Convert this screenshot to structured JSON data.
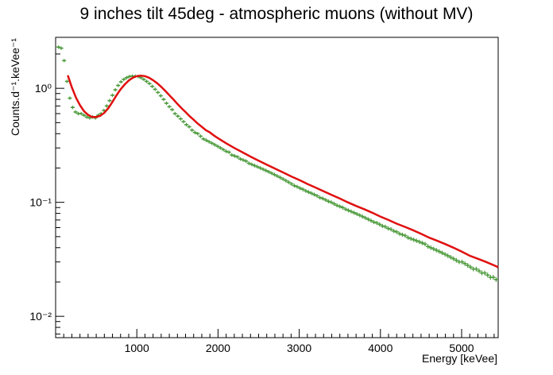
{
  "chart_data": {
    "type": "scatter",
    "title": "9 inches tilt 45deg - atmospheric muons (without MV)",
    "xlabel": "Energy [keVee]",
    "ylabel": "Counts.d⁻¹.keVee⁻¹",
    "xlim": [
      0,
      5450
    ],
    "ylim": [
      0.0065,
      2.8
    ],
    "yscale": "log",
    "grid": false,
    "x_ticks": [
      "1000",
      "2000",
      "3000",
      "4000",
      "5000"
    ],
    "y_ticks": [
      {
        "value": 1,
        "label": "10⁰"
      },
      {
        "value": 0.1,
        "label": "10⁻¹"
      },
      {
        "value": 0.01,
        "label": "10⁻²"
      }
    ],
    "colors": {
      "data": "#4a9a3a",
      "fit": "#e01010"
    },
    "series": [
      {
        "kind": "points",
        "x": [
          35,
          70,
          105,
          140,
          175,
          210,
          245,
          280,
          315,
          350,
          385,
          420,
          455,
          490,
          525,
          560,
          595,
          630,
          665,
          700,
          735,
          770,
          805,
          840,
          875,
          910,
          945,
          980,
          1015,
          1050,
          1085,
          1120,
          1155,
          1190,
          1225,
          1260,
          1295,
          1330,
          1365,
          1400,
          1435,
          1470,
          1505,
          1540,
          1575,
          1610,
          1645,
          1680,
          1715,
          1750,
          1785,
          1820,
          1855,
          1890,
          1925,
          1960,
          1995,
          2030,
          2065,
          2100,
          2135,
          2170,
          2205,
          2240,
          2275,
          2310,
          2345,
          2380,
          2415,
          2450,
          2485,
          2520,
          2555,
          2590,
          2625,
          2660,
          2695,
          2730,
          2765,
          2800,
          2835,
          2870,
          2905,
          2940,
          2975,
          3010,
          3045,
          3080,
          3115,
          3150,
          3185,
          3220,
          3255,
          3290,
          3325,
          3360,
          3395,
          3430,
          3465,
          3500,
          3535,
          3570,
          3605,
          3640,
          3675,
          3710,
          3745,
          3780,
          3815,
          3850,
          3885,
          3920,
          3955,
          3990,
          4025,
          4060,
          4095,
          4130,
          4165,
          4200,
          4235,
          4270,
          4305,
          4340,
          4375,
          4410,
          4445,
          4480,
          4515,
          4550,
          4585,
          4620,
          4655,
          4690,
          4725,
          4760,
          4795,
          4830,
          4865,
          4900,
          4935,
          4970,
          5005,
          5040,
          5075,
          5110,
          5145,
          5180,
          5215,
          5250,
          5285,
          5320,
          5355,
          5390,
          5425
        ],
        "y": [
          2.3,
          2.25,
          1.75,
          1.15,
          0.82,
          0.68,
          0.62,
          0.6,
          0.6,
          0.58,
          0.56,
          0.55,
          0.56,
          0.55,
          0.58,
          0.6,
          0.64,
          0.7,
          0.78,
          0.87,
          0.97,
          1.06,
          1.14,
          1.2,
          1.24,
          1.27,
          1.28,
          1.28,
          1.27,
          1.24,
          1.2,
          1.15,
          1.1,
          1.04,
          0.98,
          0.92,
          0.86,
          0.8,
          0.74,
          0.69,
          0.65,
          0.6,
          0.57,
          0.54,
          0.51,
          0.48,
          0.46,
          0.43,
          0.41,
          0.4,
          0.38,
          0.36,
          0.35,
          0.34,
          0.33,
          0.32,
          0.31,
          0.3,
          0.29,
          0.28,
          0.275,
          0.26,
          0.255,
          0.25,
          0.24,
          0.235,
          0.23,
          0.22,
          0.215,
          0.21,
          0.205,
          0.2,
          0.195,
          0.19,
          0.185,
          0.18,
          0.175,
          0.17,
          0.165,
          0.16,
          0.155,
          0.15,
          0.145,
          0.14,
          0.137,
          0.133,
          0.13,
          0.126,
          0.123,
          0.12,
          0.117,
          0.114,
          0.11,
          0.108,
          0.105,
          0.102,
          0.1,
          0.097,
          0.094,
          0.092,
          0.09,
          0.087,
          0.085,
          0.083,
          0.081,
          0.079,
          0.077,
          0.075,
          0.073,
          0.071,
          0.069,
          0.067,
          0.066,
          0.064,
          0.062,
          0.061,
          0.059,
          0.058,
          0.056,
          0.055,
          0.053,
          0.052,
          0.051,
          0.049,
          0.048,
          0.047,
          0.046,
          0.045,
          0.044,
          0.043,
          0.041,
          0.04,
          0.039,
          0.038,
          0.037,
          0.036,
          0.035,
          0.034,
          0.033,
          0.032,
          0.031,
          0.03,
          0.03,
          0.029,
          0.028,
          0.027,
          0.026,
          0.026,
          0.025,
          0.024,
          0.024,
          0.023,
          0.022,
          0.022,
          0.021
        ]
      },
      {
        "kind": "fit",
        "x": [
          150,
          200,
          250,
          300,
          350,
          400,
          450,
          500,
          550,
          600,
          650,
          700,
          750,
          800,
          850,
          900,
          950,
          1000,
          1050,
          1100,
          1150,
          1200,
          1250,
          1300,
          1350,
          1400,
          1450,
          1500,
          1550,
          1600,
          1650,
          1700,
          1750,
          1800,
          1850,
          1900,
          1950,
          2000,
          2100,
          2200,
          2300,
          2400,
          2500,
          2600,
          2700,
          2800,
          2900,
          3000,
          3100,
          3200,
          3300,
          3400,
          3500,
          3600,
          3700,
          3800,
          3900,
          4000,
          4100,
          4200,
          4300,
          4400,
          4500,
          4600,
          4700,
          4800,
          4900,
          5000,
          5100,
          5200,
          5300,
          5400,
          5450
        ],
        "y": [
          1.3,
          1.02,
          0.83,
          0.71,
          0.63,
          0.585,
          0.56,
          0.56,
          0.575,
          0.61,
          0.67,
          0.76,
          0.87,
          0.98,
          1.08,
          1.17,
          1.24,
          1.28,
          1.29,
          1.28,
          1.24,
          1.18,
          1.11,
          1.03,
          0.95,
          0.87,
          0.8,
          0.73,
          0.67,
          0.62,
          0.57,
          0.53,
          0.49,
          0.46,
          0.43,
          0.41,
          0.385,
          0.365,
          0.33,
          0.3,
          0.275,
          0.252,
          0.232,
          0.214,
          0.198,
          0.183,
          0.169,
          0.157,
          0.145,
          0.135,
          0.125,
          0.116,
          0.108,
          0.1,
          0.093,
          0.087,
          0.081,
          0.075,
          0.07,
          0.065,
          0.061,
          0.057,
          0.053,
          0.049,
          0.046,
          0.043,
          0.04,
          0.037,
          0.034,
          0.032,
          0.03,
          0.028,
          0.027
        ]
      }
    ]
  }
}
